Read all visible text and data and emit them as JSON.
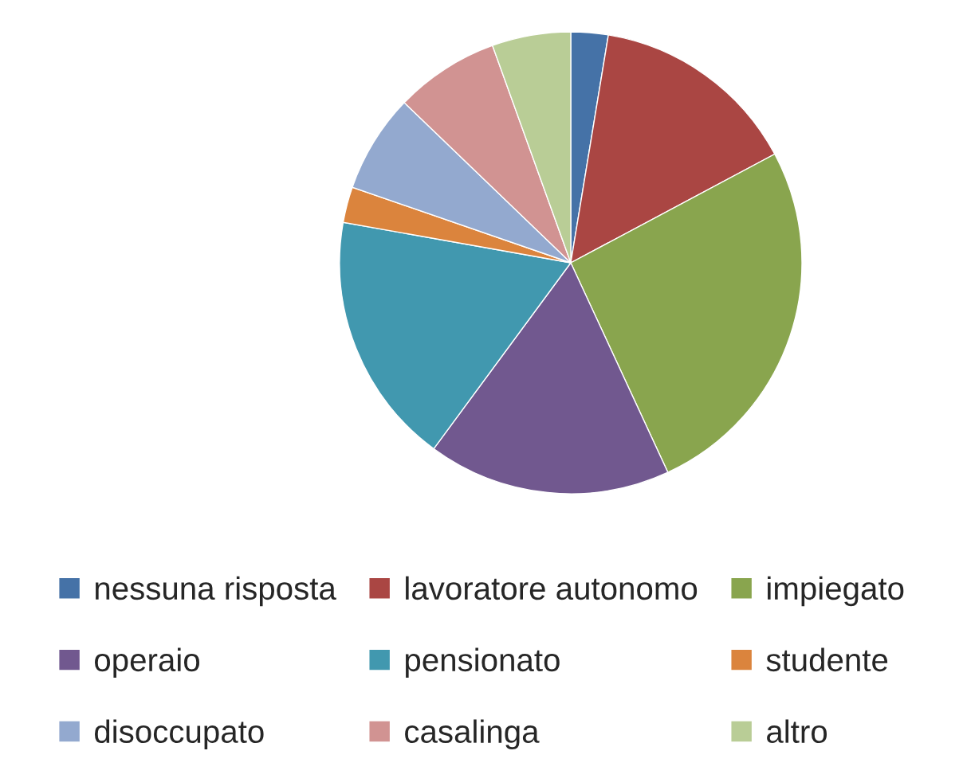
{
  "chart_data": {
    "type": "pie",
    "categories": [
      "nessuna risposta",
      "lavoratore autonomo",
      "impiegato",
      "operaio",
      "pensionato",
      "studente",
      "disoccupato",
      "casalinga",
      "altro"
    ],
    "values": [
      2.6,
      14.6,
      25.9,
      17.0,
      17.7,
      2.5,
      6.9,
      7.3,
      5.5
    ],
    "colors": [
      "#4572a7",
      "#aa4643",
      "#89a54e",
      "#71588f",
      "#4198af",
      "#db843d",
      "#93a9cf",
      "#d19392",
      "#b9cd96"
    ],
    "legend": "bottom"
  }
}
